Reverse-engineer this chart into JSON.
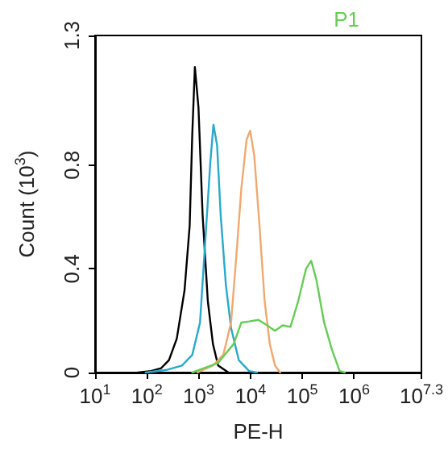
{
  "chart_data": {
    "type": "line",
    "xlabel": "PE-H",
    "ylabel": "Count (10$^{3}$)",
    "log": "x",
    "xlim": [
      10,
      19952623
    ],
    "ylim": [
      0,
      1.3
    ],
    "xticks": [
      {
        "value": 10,
        "label": "10$^{1}$"
      },
      {
        "value": 100,
        "label": "10$^{2}$"
      },
      {
        "value": 1000,
        "label": "10$^{3}$"
      },
      {
        "value": 10000,
        "label": "10$^{4}$"
      },
      {
        "value": 100000,
        "label": "10$^{5}$"
      },
      {
        "value": 1000000,
        "label": "10$^{6}$"
      },
      {
        "value": 19952623,
        "label": "10$^{7.3}$"
      }
    ],
    "yticks": [
      0,
      0.4,
      0.8,
      1.3
    ],
    "grid": false,
    "legend": "top right",
    "marker": "none",
    "line_style": "solid",
    "series": [
      {
        "color": "#000000",
        "x": [
          67,
          120,
          189,
          267,
          378,
          533,
          670,
          752,
          844,
          991,
          1191,
          1500,
          1885,
          2372,
          3758
        ],
        "values": [
          0,
          0.006,
          0.017,
          0.048,
          0.131,
          0.317,
          0.566,
          0.918,
          1.178,
          1.022,
          0.607,
          0.276,
          0.11,
          0.027,
          0
        ]
      },
      {
        "color": "#29a9cc",
        "x": [
          95,
          238,
          475,
          752,
          1062,
          1337,
          1683,
          1929,
          2265,
          2661,
          3350,
          4217,
          5943,
          9418,
          13300
        ],
        "values": [
          0,
          0.01,
          0.027,
          0.068,
          0.193,
          0.504,
          0.815,
          0.956,
          0.877,
          0.607,
          0.338,
          0.172,
          0.048,
          0.006,
          0
        ]
      },
      {
        "color": "#f0a870",
        "x": [
          946,
          1885,
          2985,
          4217,
          5297,
          6668,
          8395,
          9863,
          11860,
          14930,
          18750,
          23600,
          29720,
          37410
        ],
        "values": [
          0,
          0.027,
          0.068,
          0.193,
          0.442,
          0.711,
          0.898,
          0.933,
          0.835,
          0.566,
          0.276,
          0.11,
          0.027,
          0
        ]
      },
      {
        "name": "P1",
        "color": "#66cc55",
        "x": [
          752,
          2372,
          4732,
          6668,
          9418,
          14260,
          21040,
          29720,
          41980,
          59160,
          83560,
          118000,
          148600,
          186600,
          263600,
          372400,
          526000,
          660700
        ],
        "values": [
          0,
          0.037,
          0.11,
          0.193,
          0.197,
          0.203,
          0.182,
          0.161,
          0.182,
          0.176,
          0.276,
          0.4,
          0.431,
          0.359,
          0.193,
          0.089,
          0.006,
          0
        ]
      }
    ]
  }
}
